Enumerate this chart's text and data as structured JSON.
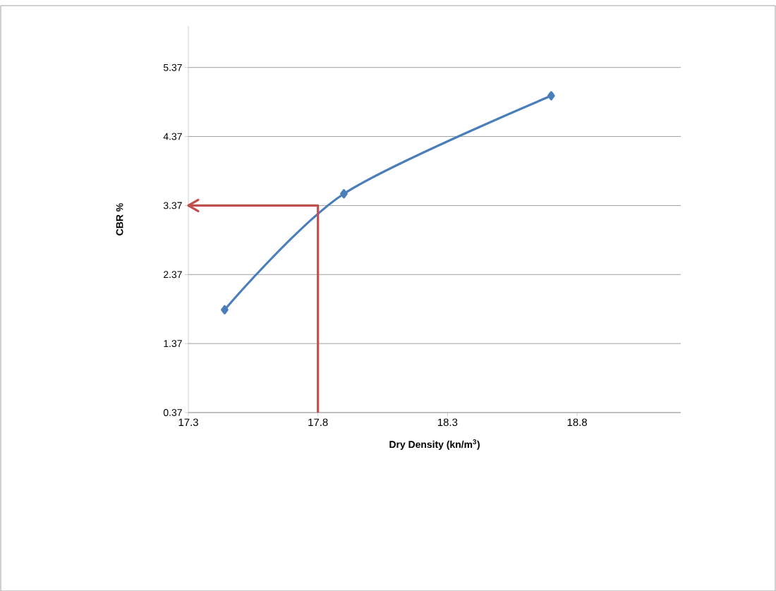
{
  "chart_data": {
    "type": "line",
    "xlabel": "Dry Density (kn/m$^{3}$)",
    "ylabel": "CBR %",
    "xlim": [
      17.3,
      19.2
    ],
    "xticks": [
      17.3,
      17.8,
      18.3,
      18.8
    ],
    "ylim": [
      0.37,
      5.97
    ],
    "yticks": [
      0.37,
      1.37,
      2.37,
      3.37,
      4.37,
      5.37
    ],
    "grid": "y",
    "series": [
      {
        "color": "#4a7ebb",
        "marker": "diamond",
        "x": [
          17.44,
          17.9,
          18.7
        ],
        "values": [
          1.86,
          3.54,
          4.96
        ]
      },
      {
        "color": "#c0504d",
        "marker": "none",
        "x": [
          17.8,
          17.8,
          17.3
        ],
        "values": [
          0.37,
          3.37,
          3.37
        ]
      }
    ]
  }
}
